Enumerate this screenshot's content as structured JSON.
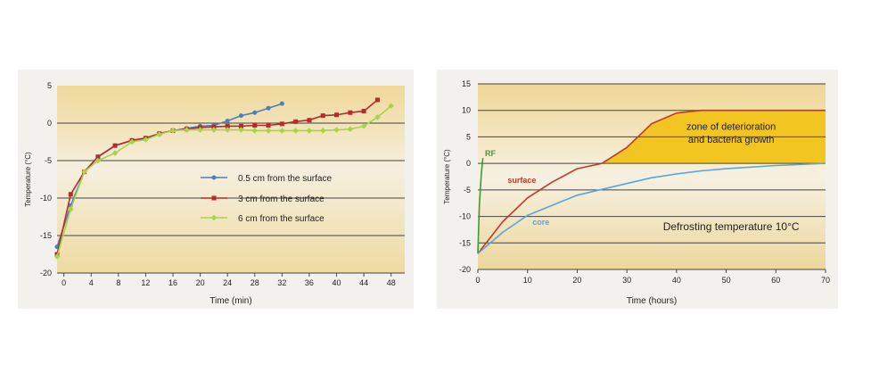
{
  "chart_data": [
    {
      "type": "line",
      "xlabel": "Time (min)",
      "ylabel": "Temperature (°C)",
      "xlim": [
        -1,
        50
      ],
      "ylim": [
        -20,
        5
      ],
      "x_ticks": [
        0,
        4,
        8,
        12,
        16,
        20,
        24,
        28,
        32,
        36,
        40,
        44,
        48
      ],
      "y_ticks": [
        5,
        0,
        -5,
        -10,
        -15,
        -20
      ],
      "grid": "horizontal",
      "legend_position": "center",
      "series": [
        {
          "name": "0.5 cm from the surface",
          "color": "#4a7fc0",
          "marker": "circle",
          "x": [
            -1,
            1,
            3,
            5,
            7.5,
            10,
            12,
            14,
            16,
            18,
            20,
            22,
            24,
            26,
            28,
            30,
            32
          ],
          "y": [
            -16.5,
            -11,
            -6.5,
            -4.5,
            -3,
            -2.3,
            -2,
            -1.4,
            -1,
            -0.7,
            -0.4,
            -0.3,
            0.3,
            1,
            1.4,
            2,
            2.6
          ]
        },
        {
          "name": "3 cm from the surface",
          "color": "#b52c2c",
          "marker": "square",
          "x": [
            -1,
            1,
            3,
            5,
            7.5,
            10,
            12,
            14,
            16,
            18,
            20,
            22,
            24,
            26,
            28,
            30,
            32,
            34,
            36,
            38,
            40,
            42,
            44,
            46
          ],
          "y": [
            -17.5,
            -9.5,
            -6.5,
            -4.5,
            -3,
            -2.3,
            -2,
            -1.4,
            -1,
            -0.8,
            -0.6,
            -0.5,
            -0.4,
            -0.4,
            -0.3,
            -0.3,
            -0.1,
            0.2,
            0.4,
            1,
            1.1,
            1.4,
            1.6,
            3.1
          ]
        },
        {
          "name": "6 cm from the surface",
          "color": "#a8d44a",
          "marker": "diamond",
          "x": [
            -1,
            1,
            3,
            5,
            7.5,
            10,
            12,
            14,
            16,
            18,
            20,
            22,
            24,
            26,
            28,
            30,
            32,
            34,
            36,
            38,
            40,
            42,
            44,
            46,
            48
          ],
          "y": [
            -17.8,
            -11.5,
            -6.5,
            -5,
            -4,
            -2.5,
            -2.2,
            -1.5,
            -1,
            -0.9,
            -0.9,
            -0.9,
            -0.9,
            -0.9,
            -1,
            -1,
            -1,
            -1,
            -1,
            -1,
            -0.9,
            -0.8,
            -0.4,
            0.8,
            2.3
          ]
        }
      ]
    },
    {
      "type": "line",
      "xlabel": "Time (hours)",
      "ylabel": "Temperature (°C)",
      "xlim": [
        0,
        70
      ],
      "ylim": [
        -20,
        15
      ],
      "x_ticks": [
        0,
        10,
        20,
        30,
        40,
        50,
        60,
        70
      ],
      "y_ticks": [
        15,
        10,
        5,
        0,
        -5,
        -10,
        -15,
        -20
      ],
      "grid": "horizontal",
      "series": [
        {
          "name": "RF",
          "color": "#3e9a3e",
          "x": [
            0,
            0.3,
            0.7,
            1
          ],
          "y": [
            -17,
            -8,
            -2,
            1
          ]
        },
        {
          "name": "surface",
          "color": "#c0392b",
          "x": [
            0,
            5,
            10,
            15,
            20,
            25,
            30,
            35,
            40,
            45,
            50,
            60,
            70
          ],
          "y": [
            -17,
            -11,
            -6.5,
            -3.5,
            -1,
            0,
            3,
            7.5,
            9.5,
            10,
            10,
            10,
            10
          ]
        },
        {
          "name": "core",
          "color": "#5aa6d8",
          "x": [
            0,
            5,
            10,
            20,
            30,
            35,
            40,
            45,
            50,
            60,
            70
          ],
          "y": [
            -17,
            -13,
            -9.8,
            -6,
            -3.8,
            -2.7,
            -2,
            -1.4,
            -1,
            -0.4,
            0
          ]
        }
      ],
      "annotations": {
        "zone_line1": "zone of deterioration",
        "zone_line2": "and bacteria growth",
        "defrost": "Defrosting temperature 10°C"
      },
      "colors": {
        "zone_fill": "#f2c521"
      }
    }
  ]
}
